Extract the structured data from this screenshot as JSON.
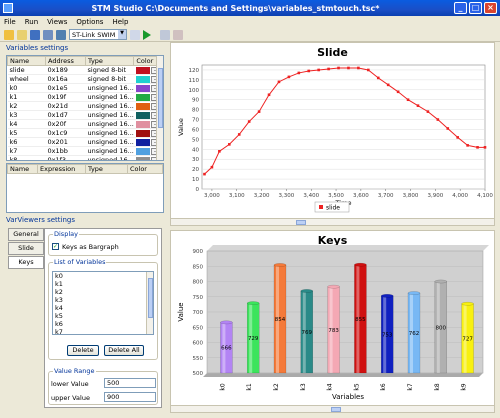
{
  "window": {
    "title": "STM Studio C:\\Documents and Settings\\variables_stmtouch.tsc*"
  },
  "menu": [
    "File",
    "Run",
    "Views",
    "Options",
    "Help"
  ],
  "toolbar": {
    "probe": "ST-Link SWIM"
  },
  "variables_settings": {
    "label": "Variables settings",
    "columns": [
      "Name",
      "Address",
      "Type",
      "Color"
    ],
    "rows": [
      {
        "name": "slide",
        "address": "0x189",
        "type": "signed 8-bit",
        "color": "#c01020"
      },
      {
        "name": "wheel",
        "address": "0x16a",
        "type": "signed 8-bit",
        "color": "#20d0d0"
      },
      {
        "name": "k0",
        "address": "0x1e5",
        "type": "unsigned 16...",
        "color": "#8844cc"
      },
      {
        "name": "k1",
        "address": "0x19f",
        "type": "unsigned 16...",
        "color": "#22aa44"
      },
      {
        "name": "k2",
        "address": "0x21d",
        "type": "unsigned 16...",
        "color": "#e06010"
      },
      {
        "name": "k3",
        "address": "0x1d7",
        "type": "unsigned 16...",
        "color": "#106060"
      },
      {
        "name": "k4",
        "address": "0x20f",
        "type": "unsigned 16...",
        "color": "#e090a0"
      },
      {
        "name": "k5",
        "address": "0x1c9",
        "type": "unsigned 16...",
        "color": "#a01010"
      },
      {
        "name": "k6",
        "address": "0x201",
        "type": "unsigned 16...",
        "color": "#1020a0"
      },
      {
        "name": "k7",
        "address": "0x1bb",
        "type": "unsigned 16...",
        "color": "#50a0e0"
      },
      {
        "name": "k8",
        "address": "0x1f3",
        "type": "unsigned 16...",
        "color": "#909090"
      }
    ],
    "expr_columns": [
      "Name",
      "Expression",
      "Type",
      "Color"
    ]
  },
  "viewers": {
    "label": "VarViewers settings",
    "tabs": [
      "General",
      "Slide",
      "Keys"
    ],
    "display_title": "Display",
    "bargraph_label": "Keys as Bargraph",
    "list_title": "List of Variables",
    "list": [
      "k0",
      "k1",
      "k2",
      "k3",
      "k4",
      "k5",
      "k6",
      "k7"
    ],
    "delete": "Delete",
    "delete_all": "Delete All",
    "range_title": "Value Range",
    "lower_label": "lower Value",
    "lower_value": "500",
    "upper_label": "upper Value",
    "upper_value": "900"
  },
  "slide_chart": {
    "title": "Slide",
    "legend": "slide",
    "xlabel": "Time",
    "ylabel": "Value",
    "color": "#ee2222"
  },
  "keys_chart": {
    "title": "Keys",
    "xlabel": "Variables",
    "ylabel": "Value"
  },
  "chart_data": [
    {
      "type": "line",
      "title": "Slide",
      "xlabel": "Time",
      "ylabel": "Value",
      "xlim": [
        2960,
        4100
      ],
      "ylim": [
        0,
        125
      ],
      "xticks": [
        "3,000",
        "3,100",
        "3,200",
        "3,300",
        "3,400",
        "3,500",
        "3,600",
        "3,700",
        "3,800",
        "3,900",
        "4,000",
        "4,100"
      ],
      "yticks": [
        "0",
        "10",
        "20",
        "30",
        "40",
        "50",
        "60",
        "70",
        "80",
        "90",
        "100",
        "110",
        "120"
      ],
      "x": [
        2970,
        3000,
        3030,
        3070,
        3110,
        3150,
        3190,
        3230,
        3270,
        3310,
        3350,
        3390,
        3430,
        3470,
        3510,
        3550,
        3590,
        3630,
        3670,
        3710,
        3750,
        3790,
        3830,
        3870,
        3910,
        3950,
        3990,
        4030,
        4070,
        4100
      ],
      "series": [
        {
          "name": "slide",
          "values": [
            15,
            22,
            38,
            45,
            55,
            68,
            78,
            95,
            108,
            113,
            117,
            119,
            120,
            121,
            122,
            122,
            122,
            120,
            112,
            105,
            98,
            90,
            84,
            78,
            70,
            61,
            52,
            44,
            42,
            42
          ]
        }
      ]
    },
    {
      "type": "bar",
      "title": "Keys",
      "xlabel": "Variables",
      "ylabel": "Value",
      "ylim": [
        500,
        900
      ],
      "yticks": [
        "500",
        "550",
        "600",
        "650",
        "700",
        "750",
        "800",
        "850",
        "900"
      ],
      "categories": [
        "k0",
        "k1",
        "k2",
        "k3",
        "k4",
        "k5",
        "k6",
        "k7",
        "k8",
        "k9"
      ],
      "values": [
        666,
        729,
        854,
        769,
        783,
        855,
        753,
        762,
        800,
        727
      ],
      "colors": [
        "#b384f4",
        "#3ce45c",
        "#f47a3a",
        "#2a8a88",
        "#f4a8b4",
        "#d01010",
        "#1020c0",
        "#78b8f4",
        "#b0b0b0",
        "#f8f010"
      ],
      "data_labels": [
        "666",
        "729",
        "854",
        "769",
        "783",
        "855",
        "753",
        "762",
        "800",
        "727"
      ]
    }
  ]
}
